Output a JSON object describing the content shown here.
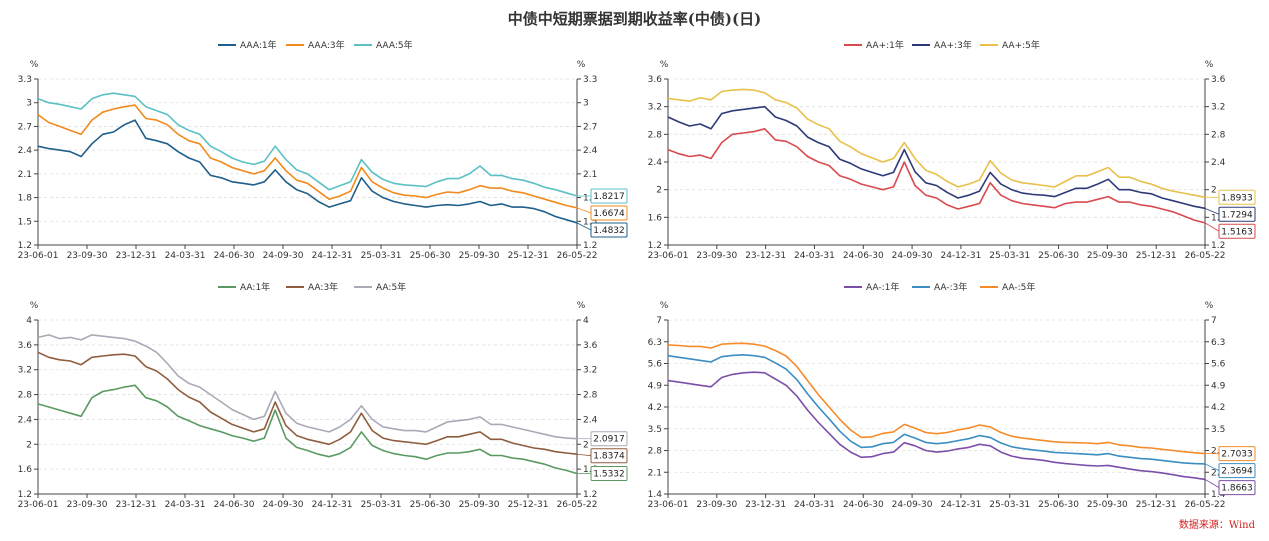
{
  "title": "中债中短期票据到期收益率(中债)(日)",
  "source": "数据来源：Wind",
  "chart_data": [
    {
      "type": "line",
      "unit_left": "%",
      "unit_right": "%",
      "x_ticks": [
        "23-06-01",
        "23-09-30",
        "23-12-31",
        "24-03-31",
        "24-06-30",
        "24-09-30",
        "24-12-31",
        "25-03-31",
        "25-06-30",
        "25-09-30",
        "25-12-31",
        "26-05-22"
      ],
      "ylim": [
        1.2,
        3.3
      ],
      "yticks": [
        1.2,
        1.5,
        1.8,
        2.1,
        2.4,
        2.7,
        3,
        3.3
      ],
      "series": [
        {
          "name": "AAA:1年",
          "color": "#1f5f8b",
          "end_value": "1.4832",
          "values": [
            2.45,
            2.42,
            2.4,
            2.38,
            2.32,
            2.48,
            2.6,
            2.63,
            2.72,
            2.78,
            2.55,
            2.52,
            2.48,
            2.38,
            2.3,
            2.25,
            2.08,
            2.05,
            2.0,
            1.98,
            1.96,
            2.0,
            2.15,
            2.0,
            1.9,
            1.85,
            1.75,
            1.68,
            1.72,
            1.76,
            2.05,
            1.88,
            1.8,
            1.75,
            1.72,
            1.7,
            1.68,
            1.7,
            1.71,
            1.7,
            1.72,
            1.75,
            1.7,
            1.72,
            1.68,
            1.68,
            1.66,
            1.62,
            1.56,
            1.52,
            1.48
          ]
        },
        {
          "name": "AAA:3年",
          "color": "#f28a1d",
          "end_value": "1.6674",
          "values": [
            2.85,
            2.75,
            2.7,
            2.65,
            2.6,
            2.78,
            2.88,
            2.92,
            2.95,
            2.97,
            2.8,
            2.78,
            2.72,
            2.6,
            2.52,
            2.48,
            2.3,
            2.25,
            2.18,
            2.14,
            2.1,
            2.14,
            2.3,
            2.14,
            2.02,
            1.98,
            1.88,
            1.78,
            1.82,
            1.88,
            2.18,
            2.0,
            1.92,
            1.86,
            1.83,
            1.82,
            1.8,
            1.84,
            1.87,
            1.86,
            1.9,
            1.95,
            1.92,
            1.92,
            1.88,
            1.86,
            1.82,
            1.78,
            1.74,
            1.7,
            1.67
          ]
        },
        {
          "name": "AAA:5年",
          "color": "#5bc0c4",
          "end_value": "1.8217",
          "values": [
            3.05,
            3.0,
            2.98,
            2.95,
            2.92,
            3.05,
            3.1,
            3.12,
            3.1,
            3.08,
            2.95,
            2.9,
            2.85,
            2.72,
            2.65,
            2.6,
            2.45,
            2.38,
            2.3,
            2.25,
            2.22,
            2.26,
            2.45,
            2.28,
            2.15,
            2.1,
            2.0,
            1.9,
            1.95,
            2.0,
            2.28,
            2.12,
            2.03,
            1.98,
            1.96,
            1.95,
            1.94,
            2.0,
            2.04,
            2.04,
            2.1,
            2.2,
            2.08,
            2.08,
            2.04,
            2.02,
            1.98,
            1.93,
            1.9,
            1.86,
            1.82
          ]
        }
      ]
    },
    {
      "type": "line",
      "unit_left": "%",
      "unit_right": "%",
      "x_ticks": [
        "23-06-01",
        "23-09-30",
        "23-12-31",
        "24-03-31",
        "24-06-30",
        "24-09-30",
        "24-12-31",
        "25-03-31",
        "25-06-30",
        "25-09-30",
        "25-12-31",
        "26-05-22"
      ],
      "ylim": [
        1.2,
        3.6
      ],
      "yticks": [
        1.2,
        1.6,
        2,
        2.4,
        2.8,
        3.2,
        3.6
      ],
      "series": [
        {
          "name": "AA+:1年",
          "color": "#d94a4e",
          "end_value": "1.5163",
          "values": [
            2.58,
            2.52,
            2.48,
            2.5,
            2.45,
            2.68,
            2.8,
            2.82,
            2.84,
            2.88,
            2.72,
            2.7,
            2.62,
            2.48,
            2.4,
            2.35,
            2.2,
            2.15,
            2.08,
            2.04,
            2.0,
            2.04,
            2.4,
            2.06,
            1.92,
            1.88,
            1.78,
            1.72,
            1.76,
            1.8,
            2.1,
            1.92,
            1.84,
            1.8,
            1.78,
            1.76,
            1.74,
            1.8,
            1.82,
            1.82,
            1.86,
            1.9,
            1.82,
            1.82,
            1.78,
            1.76,
            1.72,
            1.68,
            1.62,
            1.56,
            1.52
          ]
        },
        {
          "name": "AA+:3年",
          "color": "#2e3a78",
          "end_value": "1.7294",
          "values": [
            3.05,
            2.98,
            2.92,
            2.95,
            2.88,
            3.1,
            3.14,
            3.16,
            3.18,
            3.2,
            3.05,
            3.0,
            2.92,
            2.76,
            2.68,
            2.62,
            2.44,
            2.38,
            2.3,
            2.25,
            2.2,
            2.25,
            2.58,
            2.26,
            2.1,
            2.06,
            1.96,
            1.88,
            1.92,
            1.98,
            2.25,
            2.08,
            2.0,
            1.95,
            1.93,
            1.92,
            1.9,
            1.96,
            2.02,
            2.02,
            2.08,
            2.15,
            2.0,
            2.0,
            1.96,
            1.94,
            1.88,
            1.84,
            1.8,
            1.76,
            1.73
          ]
        },
        {
          "name": "AA+:5年",
          "color": "#e8c04a",
          "end_value": "1.8933",
          "values": [
            3.32,
            3.3,
            3.28,
            3.33,
            3.3,
            3.42,
            3.44,
            3.45,
            3.44,
            3.4,
            3.3,
            3.26,
            3.18,
            3.02,
            2.94,
            2.88,
            2.7,
            2.62,
            2.52,
            2.46,
            2.4,
            2.45,
            2.68,
            2.45,
            2.28,
            2.22,
            2.12,
            2.04,
            2.08,
            2.14,
            2.42,
            2.24,
            2.14,
            2.1,
            2.08,
            2.06,
            2.04,
            2.12,
            2.2,
            2.2,
            2.26,
            2.32,
            2.18,
            2.18,
            2.12,
            2.08,
            2.02,
            1.98,
            1.95,
            1.92,
            1.89
          ]
        }
      ]
    },
    {
      "type": "line",
      "unit_left": "%",
      "unit_right": "%",
      "x_ticks": [
        "23-06-01",
        "23-09-30",
        "23-12-31",
        "24-03-31",
        "24-06-30",
        "24-09-30",
        "24-12-31",
        "25-03-31",
        "25-06-30",
        "25-09-30",
        "25-12-31",
        "26-05-22"
      ],
      "ylim": [
        1.2,
        4
      ],
      "yticks": [
        1.2,
        1.6,
        2,
        2.4,
        2.8,
        3.2,
        3.6,
        4
      ],
      "series": [
        {
          "name": "AA:1年",
          "color": "#5a9a62",
          "end_value": "1.5332",
          "values": [
            2.65,
            2.6,
            2.55,
            2.5,
            2.45,
            2.75,
            2.85,
            2.88,
            2.92,
            2.95,
            2.75,
            2.7,
            2.6,
            2.45,
            2.38,
            2.3,
            2.25,
            2.2,
            2.14,
            2.1,
            2.05,
            2.1,
            2.55,
            2.1,
            1.95,
            1.9,
            1.84,
            1.8,
            1.85,
            1.95,
            2.2,
            1.98,
            1.9,
            1.85,
            1.82,
            1.8,
            1.76,
            1.82,
            1.86,
            1.86,
            1.88,
            1.92,
            1.82,
            1.82,
            1.78,
            1.76,
            1.72,
            1.68,
            1.62,
            1.58,
            1.53
          ]
        },
        {
          "name": "AA:3年",
          "color": "#8f5d3e",
          "end_value": "1.8374",
          "values": [
            3.48,
            3.4,
            3.36,
            3.34,
            3.28,
            3.4,
            3.42,
            3.44,
            3.45,
            3.42,
            3.25,
            3.18,
            3.05,
            2.88,
            2.76,
            2.68,
            2.52,
            2.42,
            2.32,
            2.26,
            2.2,
            2.25,
            2.68,
            2.3,
            2.14,
            2.08,
            2.04,
            2.0,
            2.08,
            2.2,
            2.5,
            2.22,
            2.1,
            2.06,
            2.04,
            2.02,
            2.0,
            2.06,
            2.12,
            2.12,
            2.16,
            2.2,
            2.08,
            2.08,
            2.02,
            1.98,
            1.94,
            1.92,
            1.88,
            1.86,
            1.84
          ]
        },
        {
          "name": "AA:5年",
          "color": "#a9a9b8",
          "end_value": "2.0917",
          "values": [
            3.72,
            3.76,
            3.7,
            3.72,
            3.68,
            3.76,
            3.74,
            3.72,
            3.7,
            3.66,
            3.58,
            3.48,
            3.3,
            3.1,
            2.98,
            2.92,
            2.8,
            2.68,
            2.56,
            2.48,
            2.4,
            2.45,
            2.85,
            2.5,
            2.34,
            2.28,
            2.24,
            2.2,
            2.28,
            2.4,
            2.62,
            2.4,
            2.28,
            2.25,
            2.22,
            2.22,
            2.2,
            2.28,
            2.36,
            2.38,
            2.4,
            2.44,
            2.32,
            2.32,
            2.28,
            2.24,
            2.2,
            2.16,
            2.12,
            2.1,
            2.09
          ]
        }
      ]
    },
    {
      "type": "line",
      "unit_left": "%",
      "unit_right": "%",
      "x_ticks": [
        "23-06-01",
        "23-09-30",
        "23-12-31",
        "24-03-31",
        "24-06-30",
        "24-09-30",
        "24-12-31",
        "25-03-31",
        "25-06-30",
        "25-09-30",
        "25-12-31",
        "26-05-22"
      ],
      "ylim": [
        1.4,
        7
      ],
      "yticks": [
        1.4,
        2.1,
        2.8,
        3.5,
        4.2,
        4.9,
        5.6,
        6.3,
        7
      ],
      "series": [
        {
          "name": "AA-:1年",
          "color": "#7b4fa8",
          "end_value": "1.8663",
          "values": [
            5.05,
            5.0,
            4.95,
            4.9,
            4.85,
            5.15,
            5.25,
            5.3,
            5.32,
            5.3,
            5.1,
            4.9,
            4.55,
            4.1,
            3.7,
            3.35,
            3.0,
            2.75,
            2.58,
            2.6,
            2.7,
            2.75,
            3.05,
            2.95,
            2.8,
            2.75,
            2.78,
            2.85,
            2.9,
            3.0,
            2.95,
            2.75,
            2.62,
            2.55,
            2.52,
            2.48,
            2.42,
            2.38,
            2.35,
            2.32,
            2.3,
            2.32,
            2.26,
            2.2,
            2.15,
            2.12,
            2.08,
            2.02,
            1.96,
            1.92,
            1.87
          ]
        },
        {
          "name": "AA-:3年",
          "color": "#3a8ec2",
          "end_value": "2.3694",
          "values": [
            5.85,
            5.8,
            5.75,
            5.7,
            5.65,
            5.82,
            5.86,
            5.88,
            5.85,
            5.8,
            5.62,
            5.42,
            5.08,
            4.62,
            4.2,
            3.82,
            3.42,
            3.1,
            2.9,
            2.92,
            3.02,
            3.06,
            3.32,
            3.2,
            3.06,
            3.02,
            3.05,
            3.12,
            3.18,
            3.28,
            3.22,
            3.04,
            2.92,
            2.86,
            2.82,
            2.78,
            2.74,
            2.72,
            2.7,
            2.68,
            2.66,
            2.7,
            2.62,
            2.58,
            2.54,
            2.52,
            2.48,
            2.44,
            2.4,
            2.38,
            2.37
          ]
        },
        {
          "name": "AA-:5年",
          "color": "#f58b2a",
          "end_value": "2.7033",
          "values": [
            6.2,
            6.18,
            6.15,
            6.15,
            6.1,
            6.22,
            6.24,
            6.25,
            6.22,
            6.16,
            6.02,
            5.84,
            5.5,
            5.05,
            4.6,
            4.2,
            3.8,
            3.46,
            3.22,
            3.24,
            3.35,
            3.4,
            3.64,
            3.52,
            3.38,
            3.34,
            3.38,
            3.46,
            3.52,
            3.62,
            3.56,
            3.38,
            3.26,
            3.2,
            3.16,
            3.12,
            3.08,
            3.06,
            3.05,
            3.04,
            3.02,
            3.06,
            2.98,
            2.95,
            2.9,
            2.88,
            2.84,
            2.8,
            2.76,
            2.73,
            2.7
          ]
        }
      ]
    }
  ]
}
